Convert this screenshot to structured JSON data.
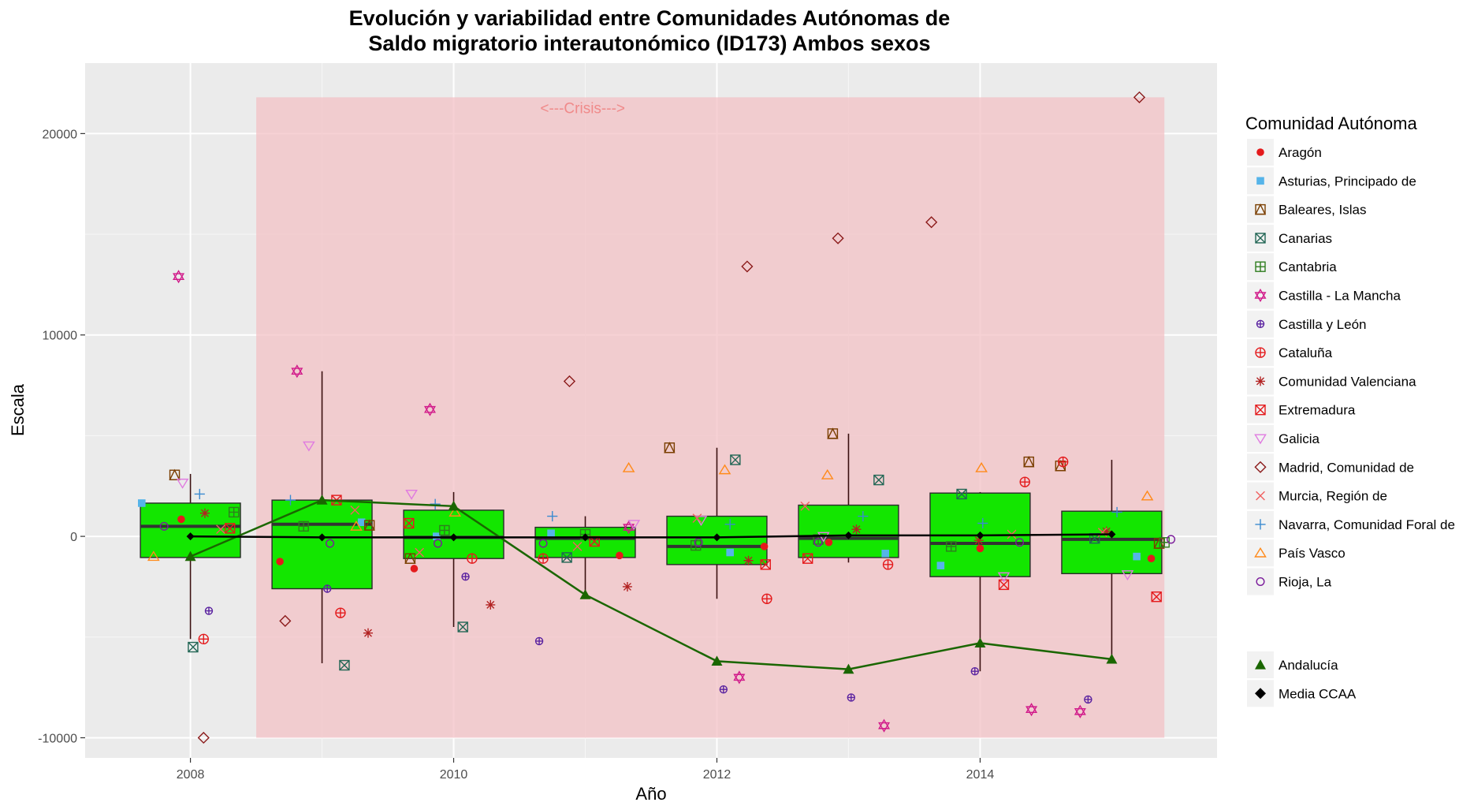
{
  "chart_data": {
    "type": "boxplot",
    "title_line1": "Evolución y variabilidad entre Comunidades Autónomas de",
    "title_line2": "Saldo migratorio interautonómico (ID173) Ambos sexos",
    "xlabel": "Año",
    "ylabel": "Escala",
    "xlim": [
      2007.2,
      2015.8
    ],
    "ylim": [
      -11000,
      23500
    ],
    "x_ticks": [
      2008,
      2010,
      2012,
      2014
    ],
    "y_ticks": [
      -10000,
      0,
      10000,
      20000
    ],
    "grid": true,
    "crisis": {
      "label": "<---Crisis--->",
      "x_start": 2008.5,
      "x_end": 2015.4,
      "y_start": -10000,
      "y_end": 21800,
      "color": "#f3c2c6"
    },
    "legend_title": "Comunidad Autónoma",
    "legend_position": "right",
    "years": [
      2008,
      2009,
      2010,
      2011,
      2012,
      2013,
      2014,
      2015
    ],
    "boxes": [
      {
        "x": 2008,
        "q1": -1050,
        "median": 500,
        "q3": 1650,
        "whisker_low": -5100,
        "whisker_high": 3100
      },
      {
        "x": 2009,
        "q1": -2600,
        "median": 600,
        "q3": 1800,
        "whisker_low": -6300,
        "whisker_high": 8200
      },
      {
        "x": 2010,
        "q1": -1100,
        "median": -50,
        "q3": 1300,
        "whisker_low": -4500,
        "whisker_high": 2200
      },
      {
        "x": 2011,
        "q1": -1050,
        "median": -100,
        "q3": 450,
        "whisker_low": -3000,
        "whisker_high": 1000
      },
      {
        "x": 2012,
        "q1": -1400,
        "median": -500,
        "q3": 1000,
        "whisker_low": -3100,
        "whisker_high": 4400
      },
      {
        "x": 2013,
        "q1": -1050,
        "median": -100,
        "q3": 1550,
        "whisker_low": -1300,
        "whisker_high": 5100
      },
      {
        "x": 2014,
        "q1": -2000,
        "median": -350,
        "q3": 2150,
        "whisker_low": -6700,
        "whisker_high": 2200
      },
      {
        "x": 2015,
        "q1": -1850,
        "median": -150,
        "q3": 1250,
        "whisker_low": -6200,
        "whisker_high": 3800
      }
    ],
    "box_color": "#13e600",
    "andalucia": {
      "name": "Andalucía",
      "color": "#1a6600",
      "values": [
        -1000,
        1800,
        1500,
        -2900,
        -6200,
        -6600,
        -5300,
        -6100
      ]
    },
    "media_ccaa": {
      "name": "Media CCAA",
      "color": "#000000",
      "values": [
        0,
        -50,
        -50,
        -50,
        -50,
        50,
        50,
        100
      ]
    },
    "series": [
      {
        "name": "Aragón",
        "color": "#e41a1c",
        "shape": "circle-filled",
        "points": [
          [
            2007.93,
            850
          ],
          [
            2008.68,
            -1250
          ],
          [
            2009.7,
            -1600
          ],
          [
            2011.26,
            -950
          ],
          [
            2012.36,
            -500
          ],
          [
            2012.85,
            -300
          ],
          [
            2014.0,
            -600
          ],
          [
            2015.3,
            -1100
          ]
        ]
      },
      {
        "name": "Asturias, Principado de",
        "color": "#56b4e9",
        "shape": "square-filled",
        "points": [
          [
            2007.63,
            1650
          ],
          [
            2009.3,
            700
          ],
          [
            2009.87,
            0
          ],
          [
            2010.74,
            150
          ],
          [
            2012.1,
            -800
          ],
          [
            2013.28,
            -850
          ],
          [
            2013.7,
            -1450
          ],
          [
            2015.19,
            -1000
          ]
        ]
      },
      {
        "name": "Baleares, Islas",
        "color": "#7a3e00",
        "shape": "square-triangle",
        "points": [
          [
            2007.88,
            3050
          ],
          [
            2009.36,
            550
          ],
          [
            2009.67,
            -1100
          ],
          [
            2011.64,
            4400
          ],
          [
            2012.88,
            5100
          ],
          [
            2014.37,
            3700
          ],
          [
            2014.61,
            3500
          ],
          [
            2015.36,
            -350
          ]
        ]
      },
      {
        "name": "Canarias",
        "color": "#226655",
        "shape": "square-x",
        "points": [
          [
            2008.02,
            -5500
          ],
          [
            2009.17,
            -6400
          ],
          [
            2010.07,
            -4500
          ],
          [
            2010.86,
            -1050
          ],
          [
            2012.14,
            3800
          ],
          [
            2013.23,
            2800
          ],
          [
            2013.86,
            2100
          ],
          [
            2014.87,
            -100
          ]
        ]
      },
      {
        "name": "Cantabria",
        "color": "#2f7d1e",
        "shape": "square-plus",
        "points": [
          [
            2008.33,
            1200
          ],
          [
            2008.86,
            500
          ],
          [
            2009.93,
            300
          ],
          [
            2011.0,
            100
          ],
          [
            2011.84,
            -450
          ],
          [
            2012.77,
            -150
          ],
          [
            2013.78,
            -500
          ],
          [
            2015.4,
            -300
          ]
        ]
      },
      {
        "name": "Castilla - La Mancha",
        "color": "#d11a8a",
        "shape": "star-david",
        "points": [
          [
            2007.91,
            12900
          ],
          [
            2008.81,
            8200
          ],
          [
            2009.82,
            6300
          ],
          [
            2011.33,
            450
          ],
          [
            2012.17,
            -7000
          ],
          [
            2013.27,
            -9400
          ],
          [
            2014.39,
            -8600
          ],
          [
            2014.76,
            -8700
          ]
        ]
      },
      {
        "name": "Castilla y León",
        "color": "#5a22a0",
        "shape": "circle-plus",
        "points": [
          [
            2008.14,
            -3700
          ],
          [
            2009.04,
            -2600
          ],
          [
            2010.09,
            -2000
          ],
          [
            2010.65,
            -5200
          ],
          [
            2012.05,
            -7600
          ],
          [
            2013.02,
            -8000
          ],
          [
            2013.96,
            -6700
          ],
          [
            2014.82,
            -8100
          ]
        ]
      },
      {
        "name": "Cataluña",
        "color": "#e41a1c",
        "shape": "circle-plus-open",
        "points": [
          [
            2008.1,
            -5100
          ],
          [
            2009.14,
            -3800
          ],
          [
            2010.14,
            -1100
          ],
          [
            2010.68,
            -1100
          ],
          [
            2012.38,
            -3100
          ],
          [
            2013.3,
            -1400
          ],
          [
            2014.34,
            2700
          ],
          [
            2014.63,
            3700
          ]
        ]
      },
      {
        "name": "Comunidad Valenciana",
        "color": "#b22222",
        "shape": "asterisk",
        "points": [
          [
            2008.11,
            1150
          ],
          [
            2009.35,
            -4800
          ],
          [
            2010.28,
            -3400
          ],
          [
            2011.32,
            -2500
          ],
          [
            2012.24,
            -1200
          ],
          [
            2013.06,
            350
          ],
          [
            2013.99,
            -200
          ],
          [
            2014.96,
            250
          ]
        ]
      },
      {
        "name": "Extremadura",
        "color": "#e41a1c",
        "shape": "square-x-red",
        "points": [
          [
            2008.3,
            400
          ],
          [
            2009.11,
            1800
          ],
          [
            2009.66,
            650
          ],
          [
            2011.07,
            -250
          ],
          [
            2012.37,
            -1400
          ],
          [
            2012.69,
            -1100
          ],
          [
            2014.18,
            -2400
          ],
          [
            2015.34,
            -3000
          ]
        ]
      },
      {
        "name": "Galicia",
        "color": "#e07be0",
        "shape": "triangle-down",
        "points": [
          [
            2007.94,
            2650
          ],
          [
            2008.9,
            4500
          ],
          [
            2009.68,
            2100
          ],
          [
            2011.37,
            600
          ],
          [
            2011.88,
            800
          ],
          [
            2012.81,
            0
          ],
          [
            2014.18,
            -2000
          ],
          [
            2015.12,
            -1900
          ]
        ]
      },
      {
        "name": "Madrid, Comunidad de",
        "color": "#8b1a1a",
        "shape": "diamond",
        "points": [
          [
            2008.1,
            -10000
          ],
          [
            2008.72,
            -4200
          ],
          [
            2010.88,
            7700
          ],
          [
            2012.23,
            13400
          ],
          [
            2012.92,
            14800
          ],
          [
            2013.63,
            15600
          ],
          [
            2015.21,
            21800
          ]
        ]
      },
      {
        "name": "Murcia, Región de",
        "color": "#f06060",
        "shape": "x",
        "points": [
          [
            2008.23,
            350
          ],
          [
            2009.25,
            1300
          ],
          [
            2009.74,
            -800
          ],
          [
            2010.94,
            -500
          ],
          [
            2011.85,
            900
          ],
          [
            2012.67,
            1500
          ],
          [
            2014.24,
            100
          ],
          [
            2014.93,
            200
          ]
        ]
      },
      {
        "name": "Navarra, Comunidad Foral de",
        "color": "#3a8ad0",
        "shape": "plus",
        "points": [
          [
            2008.07,
            2100
          ],
          [
            2008.76,
            1800
          ],
          [
            2009.86,
            1600
          ],
          [
            2010.75,
            1000
          ],
          [
            2012.1,
            600
          ],
          [
            2013.11,
            1000
          ],
          [
            2014.02,
            650
          ],
          [
            2015.04,
            1200
          ]
        ]
      },
      {
        "name": "País Vasco",
        "color": "#ff8a1a",
        "shape": "triangle-up-open",
        "points": [
          [
            2007.72,
            -1000
          ],
          [
            2009.26,
            500
          ],
          [
            2010.01,
            1200
          ],
          [
            2011.33,
            3400
          ],
          [
            2012.06,
            3300
          ],
          [
            2012.84,
            3050
          ],
          [
            2014.01,
            3400
          ],
          [
            2015.27,
            2000
          ]
        ]
      },
      {
        "name": "Rioja, La",
        "color": "#7a1a9a",
        "shape": "circle-open",
        "points": [
          [
            2007.8,
            500
          ],
          [
            2009.06,
            -350
          ],
          [
            2009.88,
            -350
          ],
          [
            2010.68,
            -350
          ],
          [
            2011.86,
            -300
          ],
          [
            2012.77,
            -300
          ],
          [
            2014.3,
            -300
          ],
          [
            2015.45,
            -150
          ]
        ]
      }
    ]
  }
}
